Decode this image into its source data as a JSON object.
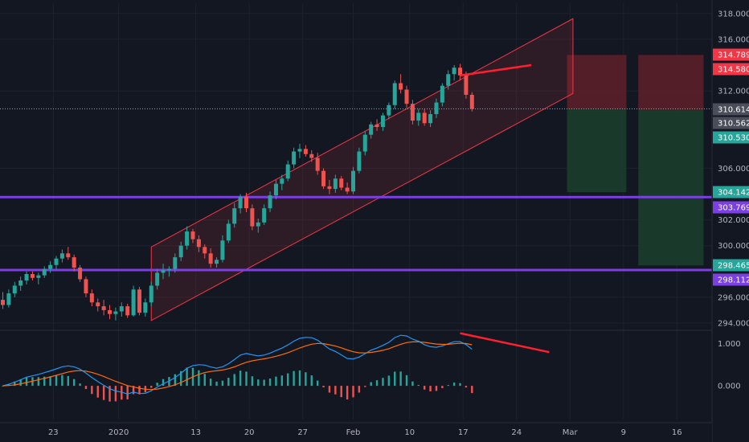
{
  "colors": {
    "background": "#131722",
    "up": "#26a69a",
    "down": "#ef5350",
    "channel": "#f23645",
    "support": "#7b3fe4",
    "macd": "#2196f3",
    "signal": "#ff6d00",
    "stop_zone": "#5c1f2a",
    "target_zone": "#1b3d2c",
    "divergence": "#ff1f2f"
  },
  "chart_data": [
    {
      "type": "candlestick",
      "name": "price",
      "x_labels": [
        "23",
        "2020",
        "13",
        "20",
        "27",
        "Feb",
        "10",
        "17",
        "24",
        "Mar",
        "9",
        "16"
      ],
      "y_ticks": [
        "318.000",
        "316.000",
        "312.000",
        "306.000",
        "302.000",
        "300.000",
        "296.000",
        "294.000"
      ],
      "ylim": [
        293.5,
        318.8
      ],
      "ohlc": [
        [
          295.8,
          296.4,
          295.1,
          295.4
        ],
        [
          295.4,
          296.6,
          295.2,
          296.3
        ],
        [
          296.3,
          297.2,
          296.0,
          296.9
        ],
        [
          296.9,
          297.6,
          296.5,
          297.3
        ],
        [
          297.3,
          298.0,
          297.0,
          297.8
        ],
        [
          297.8,
          298.0,
          297.3,
          297.5
        ],
        [
          297.5,
          297.9,
          297.0,
          297.7
        ],
        [
          297.7,
          298.4,
          297.5,
          298.2
        ],
        [
          298.2,
          298.8,
          297.9,
          298.5
        ],
        [
          298.5,
          299.2,
          298.2,
          299.0
        ],
        [
          299.0,
          299.7,
          298.7,
          299.4
        ],
        [
          299.4,
          299.9,
          298.9,
          299.1
        ],
        [
          299.1,
          299.3,
          298.0,
          298.3
        ],
        [
          298.3,
          298.5,
          297.2,
          297.4
        ],
        [
          297.4,
          297.6,
          296.0,
          296.3
        ],
        [
          296.3,
          296.6,
          295.3,
          295.6
        ],
        [
          295.6,
          295.9,
          294.9,
          295.3
        ],
        [
          295.3,
          295.8,
          294.6,
          295.0
        ],
        [
          295.0,
          295.4,
          294.3,
          294.7
        ],
        [
          294.7,
          295.2,
          294.2,
          294.9
        ],
        [
          294.9,
          295.6,
          294.5,
          295.3
        ],
        [
          295.3,
          295.5,
          294.4,
          294.6
        ],
        [
          294.6,
          296.9,
          294.5,
          296.6
        ],
        [
          296.6,
          296.8,
          294.6,
          294.8
        ],
        [
          294.8,
          295.9,
          294.5,
          295.6
        ],
        [
          295.6,
          297.2,
          295.3,
          296.9
        ],
        [
          296.9,
          298.2,
          296.6,
          297.9
        ],
        [
          297.9,
          298.6,
          297.4,
          298.1
        ],
        [
          298.1,
          298.4,
          297.6,
          298.2
        ],
        [
          298.2,
          299.4,
          297.9,
          299.1
        ],
        [
          299.1,
          300.3,
          298.8,
          300.0
        ],
        [
          300.0,
          301.5,
          299.7,
          301.1
        ],
        [
          301.1,
          301.3,
          300.2,
          300.5
        ],
        [
          300.5,
          300.8,
          299.5,
          299.9
        ],
        [
          299.9,
          300.1,
          299.0,
          299.4
        ],
        [
          299.4,
          299.8,
          298.3,
          298.6
        ],
        [
          298.6,
          299.1,
          298.3,
          298.9
        ],
        [
          298.9,
          300.8,
          298.7,
          300.4
        ],
        [
          300.4,
          302.0,
          300.2,
          301.7
        ],
        [
          301.7,
          303.3,
          301.4,
          302.9
        ],
        [
          302.9,
          304.0,
          302.5,
          303.8
        ],
        [
          303.8,
          304.1,
          302.6,
          302.9
        ],
        [
          302.9,
          303.2,
          301.2,
          301.5
        ],
        [
          301.5,
          302.1,
          301.0,
          301.8
        ],
        [
          301.8,
          303.2,
          301.6,
          302.9
        ],
        [
          302.9,
          304.2,
          302.6,
          303.9
        ],
        [
          303.9,
          305.1,
          303.6,
          304.8
        ],
        [
          304.8,
          305.5,
          304.3,
          305.2
        ],
        [
          305.2,
          306.6,
          305.0,
          306.3
        ],
        [
          306.3,
          307.6,
          306.0,
          307.3
        ],
        [
          307.3,
          307.9,
          306.8,
          307.5
        ],
        [
          307.5,
          307.8,
          306.9,
          307.1
        ],
        [
          307.1,
          307.4,
          306.5,
          306.8
        ],
        [
          306.8,
          307.2,
          305.5,
          305.8
        ],
        [
          305.8,
          306.0,
          304.4,
          304.6
        ],
        [
          304.6,
          305.1,
          304.0,
          304.4
        ],
        [
          304.4,
          305.5,
          304.1,
          305.2
        ],
        [
          305.2,
          305.4,
          304.3,
          304.5
        ],
        [
          304.5,
          304.9,
          304.0,
          304.2
        ],
        [
          304.2,
          306.1,
          304.0,
          305.8
        ],
        [
          305.8,
          307.6,
          305.6,
          307.3
        ],
        [
          307.3,
          308.9,
          307.0,
          308.6
        ],
        [
          308.6,
          309.6,
          308.3,
          309.4
        ],
        [
          309.4,
          309.8,
          308.9,
          309.2
        ],
        [
          309.2,
          310.3,
          308.9,
          310.1
        ],
        [
          310.1,
          311.1,
          309.8,
          310.9
        ],
        [
          310.9,
          312.8,
          310.6,
          312.6
        ],
        [
          312.6,
          313.3,
          311.8,
          312.1
        ],
        [
          312.1,
          312.4,
          310.7,
          311.0
        ],
        [
          311.0,
          311.3,
          309.4,
          309.7
        ],
        [
          309.7,
          310.6,
          309.3,
          310.3
        ],
        [
          310.3,
          310.6,
          309.3,
          309.5
        ],
        [
          309.5,
          310.5,
          309.2,
          310.2
        ],
        [
          310.2,
          311.4,
          309.9,
          311.1
        ],
        [
          311.1,
          312.6,
          310.8,
          312.4
        ],
        [
          312.4,
          313.6,
          312.1,
          313.3
        ],
        [
          313.3,
          314.0,
          312.8,
          313.8
        ],
        [
          313.8,
          314.1,
          312.8,
          313.2
        ],
        [
          313.2,
          313.5,
          311.4,
          311.7
        ],
        [
          311.7,
          311.9,
          310.4,
          310.6
        ]
      ],
      "channel": {
        "upper_start": [
          25,
          299.9
        ],
        "upper_end": [
          96,
          317.6
        ],
        "lower_start": [
          25,
          294.2
        ],
        "lower_end": [
          96,
          311.8
        ]
      },
      "support_levels": [
        303.769,
        298.112
      ],
      "current_price": 310.614,
      "zones": [
        {
          "kind": "stop",
          "x_start": 95,
          "x_end": 105,
          "top": 314.789,
          "bottom": 310.562
        },
        {
          "kind": "target",
          "x_start": 95,
          "x_end": 105,
          "top": 310.562,
          "bottom": 304.142
        },
        {
          "kind": "stop",
          "x_start": 107,
          "x_end": 118,
          "top": 314.789,
          "bottom": 310.53
        },
        {
          "kind": "target",
          "x_start": 107,
          "x_end": 118,
          "top": 310.53,
          "bottom": 298.465
        }
      ],
      "divergence_line": {
        "start": [
          77,
          313.2
        ],
        "end": [
          89,
          314.0
        ]
      },
      "price_tags": [
        {
          "value": "314.789",
          "color": "#f23645"
        },
        {
          "value": "314.580",
          "color": "#f23645"
        },
        {
          "value": "310.614",
          "color": "#4a4e5a"
        },
        {
          "value": "310.562",
          "color": "#4a4e5a"
        },
        {
          "value": "310.530",
          "color": "#26a69a"
        },
        {
          "value": "304.142",
          "color": "#26a69a"
        },
        {
          "value": "303.769",
          "color": "#7b3fe4"
        },
        {
          "value": "298.465",
          "color": "#26a69a"
        },
        {
          "value": "298.112",
          "color": "#7b3fe4"
        }
      ]
    },
    {
      "type": "macd",
      "name": "macd",
      "y_ticks": [
        "1.000",
        "0.000"
      ],
      "ylim": [
        -0.8,
        1.3
      ],
      "divergence_line": {
        "start": [
          77,
          1.25
        ],
        "end": [
          92,
          0.8
        ]
      }
    }
  ]
}
